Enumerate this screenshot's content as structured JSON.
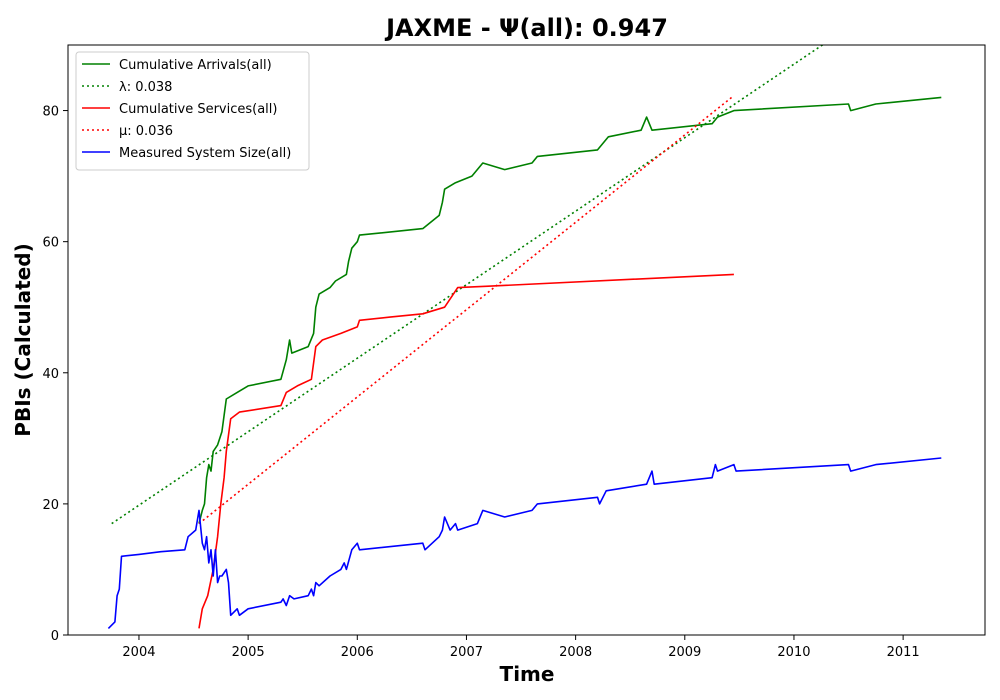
{
  "chart_data": {
    "type": "line",
    "title": "JAXME -  Ψ(all): 0.947",
    "xlabel": "Time",
    "ylabel": "PBIs (Calculated)",
    "xlim": [
      2003.35,
      2011.75
    ],
    "ylim": [
      0,
      90
    ],
    "xticks": [
      2004,
      2005,
      2006,
      2007,
      2008,
      2009,
      2010,
      2011
    ],
    "yticks": [
      0,
      20,
      40,
      60,
      80
    ],
    "legend_position": "upper left",
    "grid": false,
    "series": [
      {
        "name": "Cumulative Arrivals(all)",
        "style": "solid",
        "color": "#008000",
        "points": [
          [
            2004.55,
            17
          ],
          [
            2004.58,
            19
          ],
          [
            2004.6,
            20
          ],
          [
            2004.62,
            24
          ],
          [
            2004.64,
            26
          ],
          [
            2004.66,
            25
          ],
          [
            2004.68,
            28
          ],
          [
            2004.72,
            29
          ],
          [
            2004.76,
            31
          ],
          [
            2004.8,
            36
          ],
          [
            2004.9,
            37
          ],
          [
            2005.0,
            38
          ],
          [
            2005.3,
            39
          ],
          [
            2005.35,
            42
          ],
          [
            2005.38,
            45
          ],
          [
            2005.4,
            43
          ],
          [
            2005.55,
            44
          ],
          [
            2005.6,
            46
          ],
          [
            2005.62,
            50
          ],
          [
            2005.65,
            52
          ],
          [
            2005.75,
            53
          ],
          [
            2005.8,
            54
          ],
          [
            2005.9,
            55
          ],
          [
            2005.92,
            57
          ],
          [
            2005.95,
            59
          ],
          [
            2006.0,
            60
          ],
          [
            2006.02,
            61
          ],
          [
            2006.6,
            62
          ],
          [
            2006.75,
            64
          ],
          [
            2006.78,
            66
          ],
          [
            2006.8,
            68
          ],
          [
            2006.9,
            69
          ],
          [
            2007.05,
            70
          ],
          [
            2007.15,
            72
          ],
          [
            2007.35,
            71
          ],
          [
            2007.6,
            72
          ],
          [
            2007.65,
            73
          ],
          [
            2008.2,
            74
          ],
          [
            2008.3,
            76
          ],
          [
            2008.6,
            77
          ],
          [
            2008.65,
            79
          ],
          [
            2008.7,
            77
          ],
          [
            2009.25,
            78
          ],
          [
            2009.3,
            79
          ],
          [
            2009.45,
            80
          ],
          [
            2010.5,
            81
          ],
          [
            2010.52,
            80
          ],
          [
            2010.75,
            81
          ],
          [
            2011.35,
            82
          ]
        ]
      },
      {
        "name": "λ: 0.038",
        "style": "dotted",
        "color": "#008000",
        "points": [
          [
            2003.75,
            17
          ],
          [
            2010.35,
            91
          ]
        ]
      },
      {
        "name": "Cumulative Services(all)",
        "style": "solid",
        "color": "#ff0000",
        "points": [
          [
            2004.55,
            1
          ],
          [
            2004.58,
            4
          ],
          [
            2004.63,
            6
          ],
          [
            2004.68,
            10
          ],
          [
            2004.72,
            15
          ],
          [
            2004.75,
            20
          ],
          [
            2004.78,
            24
          ],
          [
            2004.8,
            28
          ],
          [
            2004.84,
            33
          ],
          [
            2004.92,
            34
          ],
          [
            2005.3,
            35
          ],
          [
            2005.35,
            37
          ],
          [
            2005.45,
            38
          ],
          [
            2005.58,
            39
          ],
          [
            2005.62,
            44
          ],
          [
            2005.68,
            45
          ],
          [
            2005.85,
            46
          ],
          [
            2006.0,
            47
          ],
          [
            2006.02,
            48
          ],
          [
            2006.3,
            48.5
          ],
          [
            2006.6,
            49
          ],
          [
            2006.8,
            50
          ],
          [
            2006.88,
            52
          ],
          [
            2006.92,
            53
          ],
          [
            2007.2,
            53.2
          ],
          [
            2009.45,
            55
          ]
        ]
      },
      {
        "name": "μ: 0.036",
        "style": "dotted",
        "color": "#ff0000",
        "points": [
          [
            2004.55,
            17
          ],
          [
            2009.43,
            82
          ]
        ]
      },
      {
        "name": "Measured System Size(all)",
        "style": "solid",
        "color": "#0000ff",
        "points": [
          [
            2003.72,
            1
          ],
          [
            2003.78,
            2
          ],
          [
            2003.8,
            6
          ],
          [
            2003.82,
            7
          ],
          [
            2003.84,
            12
          ],
          [
            2004.0,
            12.3
          ],
          [
            2004.2,
            12.7
          ],
          [
            2004.42,
            13
          ],
          [
            2004.45,
            15
          ],
          [
            2004.52,
            16
          ],
          [
            2004.55,
            19
          ],
          [
            2004.58,
            14
          ],
          [
            2004.6,
            13
          ],
          [
            2004.62,
            15
          ],
          [
            2004.64,
            11
          ],
          [
            2004.66,
            13
          ],
          [
            2004.68,
            9
          ],
          [
            2004.7,
            13
          ],
          [
            2004.72,
            8
          ],
          [
            2004.74,
            9
          ],
          [
            2004.76,
            9
          ],
          [
            2004.8,
            10
          ],
          [
            2004.82,
            8
          ],
          [
            2004.84,
            3
          ],
          [
            2004.9,
            4
          ],
          [
            2004.92,
            3
          ],
          [
            2005.0,
            4
          ],
          [
            2005.3,
            5
          ],
          [
            2005.32,
            5.5
          ],
          [
            2005.35,
            4.5
          ],
          [
            2005.38,
            6
          ],
          [
            2005.42,
            5.5
          ],
          [
            2005.55,
            6
          ],
          [
            2005.58,
            7
          ],
          [
            2005.6,
            6
          ],
          [
            2005.62,
            8
          ],
          [
            2005.65,
            7.5
          ],
          [
            2005.75,
            9
          ],
          [
            2005.85,
            10
          ],
          [
            2005.88,
            11
          ],
          [
            2005.9,
            10
          ],
          [
            2005.95,
            13
          ],
          [
            2006.0,
            14
          ],
          [
            2006.02,
            13
          ],
          [
            2006.6,
            14
          ],
          [
            2006.62,
            13
          ],
          [
            2006.75,
            15
          ],
          [
            2006.78,
            16
          ],
          [
            2006.8,
            18
          ],
          [
            2006.85,
            16
          ],
          [
            2006.9,
            17
          ],
          [
            2006.92,
            16
          ],
          [
            2007.1,
            17
          ],
          [
            2007.15,
            19
          ],
          [
            2007.35,
            18
          ],
          [
            2007.6,
            19
          ],
          [
            2007.65,
            20
          ],
          [
            2008.2,
            21
          ],
          [
            2008.22,
            20
          ],
          [
            2008.28,
            22
          ],
          [
            2008.65,
            23
          ],
          [
            2008.7,
            25
          ],
          [
            2008.72,
            23
          ],
          [
            2009.25,
            24
          ],
          [
            2009.28,
            26
          ],
          [
            2009.3,
            25
          ],
          [
            2009.45,
            26
          ],
          [
            2009.47,
            25
          ],
          [
            2010.5,
            26
          ],
          [
            2010.52,
            25
          ],
          [
            2010.75,
            26
          ],
          [
            2011.35,
            27
          ]
        ]
      }
    ]
  }
}
